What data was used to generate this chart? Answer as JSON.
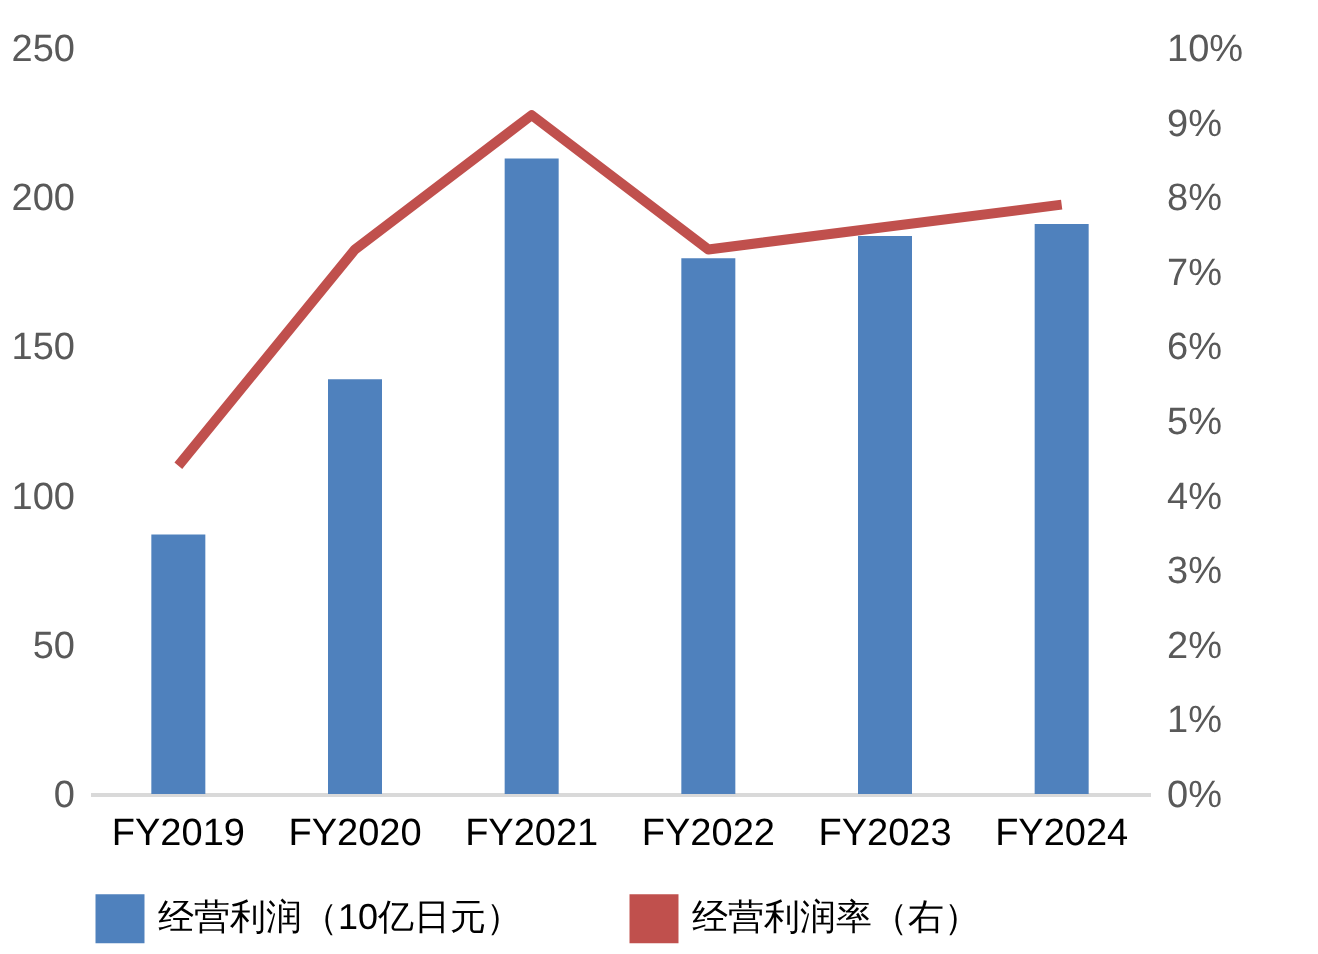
{
  "chart_data": {
    "type": "bar",
    "categories": [
      "FY2019",
      "FY2020",
      "FY2021",
      "FY2022",
      "FY2023",
      "FY2024"
    ],
    "series": [
      {
        "name": "经营利润（10亿日元）",
        "color": "#4f81bd",
        "values": [
          87,
          139,
          213,
          179.5,
          187,
          191
        ]
      },
      {
        "name": "经营利润率（右）",
        "type": "line",
        "axis": "y2",
        "color": "#c0504d",
        "values": [
          4.4,
          7.3,
          9.1,
          7.3,
          7.6,
          7.9
        ]
      }
    ],
    "ylim": [
      0,
      250
    ],
    "yticks": [
      0,
      50,
      100,
      150,
      200,
      250
    ],
    "y2lim": [
      0,
      10
    ],
    "y2ticks": [
      {
        "value": 0,
        "label": "0%"
      },
      {
        "value": 1,
        "label": "1%"
      },
      {
        "value": 2,
        "label": "2%"
      },
      {
        "value": 3,
        "label": "3%"
      },
      {
        "value": 4,
        "label": "4%"
      },
      {
        "value": 5,
        "label": "5%"
      },
      {
        "value": 6,
        "label": "6%"
      },
      {
        "value": 7,
        "label": "7%"
      },
      {
        "value": 8,
        "label": "8%"
      },
      {
        "value": 9,
        "label": "9%"
      },
      {
        "value": 10,
        "label": "10%"
      }
    ],
    "grid": false,
    "legend": "bottom",
    "marker": "none"
  }
}
